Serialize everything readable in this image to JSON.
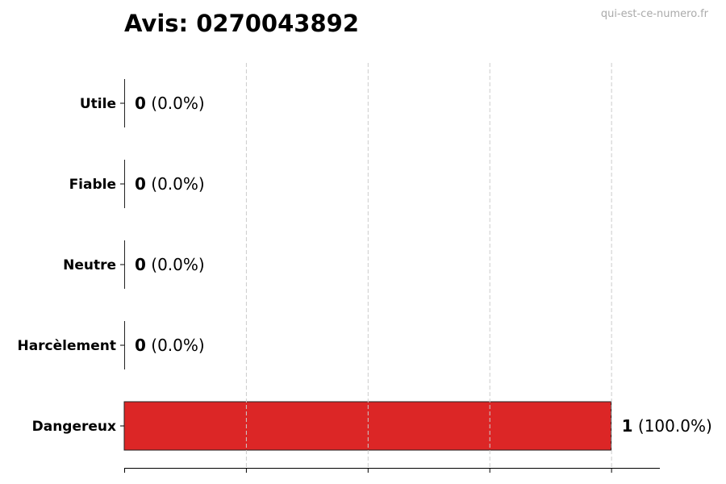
{
  "title": "Avis: 0270043892",
  "watermark": "qui-est-ce-numero.fr",
  "chart_data": {
    "type": "bar",
    "orientation": "horizontal",
    "title": "Avis: 0270043892",
    "categories": [
      "Utile",
      "Fiable",
      "Neutre",
      "Harcèlement",
      "Dangereux"
    ],
    "values": [
      0,
      0,
      0,
      0,
      1
    ],
    "labels": [
      "(0.0%)",
      "(0.0%)",
      "(0.0%)",
      "(0.0%)",
      "(100.0%)"
    ],
    "xlim": [
      0,
      1.1
    ],
    "xticks": [
      0,
      0.25,
      0.5,
      0.75,
      1
    ],
    "tick_labels_shown": false,
    "grid": "x dashed",
    "bar_color": "#dc2626",
    "edge_color": "#222222"
  }
}
